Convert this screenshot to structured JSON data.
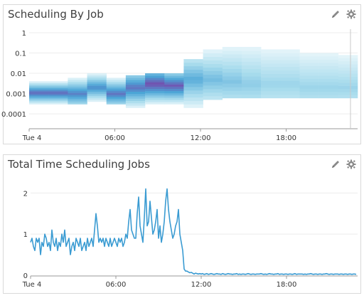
{
  "panels": [
    {
      "title": "Scheduling By Job",
      "edit_icon": "pencil-icon",
      "settings_icon": "gear-icon",
      "chart_data": {
        "type": "heatmap",
        "title": "Scheduling By Job",
        "x_tick_labels": [
          "Tue 4",
          "06:00",
          "12:00",
          "18:00"
        ],
        "y_tick_labels": [
          "1",
          "0.1",
          "0.01",
          "0.001",
          "0.0001"
        ],
        "y_scale": "log",
        "ylim": [
          2e-05,
          1.5
        ],
        "xlim_hours": [
          0,
          23
        ],
        "grid": "horizontal",
        "legend": "none",
        "colors": {
          "low": "#d9f0f7",
          "mid": "#5cb8df",
          "high": "#7a3fa8"
        },
        "columns": [
          {
            "t": 0.0,
            "low": 0.0003,
            "high": 0.004,
            "peak": 0.0011,
            "intensity": 0.85
          },
          {
            "t": 1.4,
            "low": 0.0003,
            "high": 0.004,
            "peak": 0.0011,
            "intensity": 0.85
          },
          {
            "t": 2.8,
            "low": 0.0003,
            "high": 0.006,
            "peak": 0.001,
            "intensity": 0.75
          },
          {
            "t": 4.2,
            "low": 0.0004,
            "high": 0.01,
            "peak": 0.002,
            "intensity": 0.7
          },
          {
            "t": 5.6,
            "low": 0.0003,
            "high": 0.006,
            "peak": 0.001,
            "intensity": 0.8
          },
          {
            "t": 7.0,
            "low": 0.0002,
            "high": 0.008,
            "peak": 0.002,
            "intensity": 0.8
          },
          {
            "t": 8.4,
            "low": 0.0003,
            "high": 0.01,
            "peak": 0.003,
            "intensity": 0.95
          },
          {
            "t": 9.8,
            "low": 0.0003,
            "high": 0.01,
            "peak": 0.0025,
            "intensity": 0.9
          },
          {
            "t": 11.0,
            "low": 0.0002,
            "high": 0.05,
            "peak": 0.005,
            "intensity": 0.55
          },
          {
            "t": 12.0,
            "low": 0.0005,
            "high": 0.15,
            "peak": 0.005,
            "intensity": 0.45
          },
          {
            "t": 13.3,
            "low": 0.0006,
            "high": 0.2,
            "peak": 0.004,
            "intensity": 0.4
          },
          {
            "t": 14.6,
            "low": 0.0006,
            "high": 0.2,
            "peak": 0.003,
            "intensity": 0.35
          },
          {
            "t": 15.9,
            "low": 0.0006,
            "high": 0.15,
            "peak": 0.003,
            "intensity": 0.3
          },
          {
            "t": 17.2,
            "low": 0.0006,
            "high": 0.15,
            "peak": 0.003,
            "intensity": 0.3
          },
          {
            "t": 18.5,
            "low": 0.0006,
            "high": 0.1,
            "peak": 0.002,
            "intensity": 0.3
          },
          {
            "t": 19.8,
            "low": 0.0006,
            "high": 0.1,
            "peak": 0.002,
            "intensity": 0.3
          },
          {
            "t": 21.1,
            "low": 0.0006,
            "high": 0.08,
            "peak": 0.002,
            "intensity": 0.3
          }
        ]
      }
    },
    {
      "title": "Total Time Scheduling Jobs",
      "edit_icon": "pencil-icon",
      "settings_icon": "gear-icon",
      "chart_data": {
        "type": "line",
        "title": "Total Time Scheduling Jobs",
        "x_tick_labels": [
          "Tue 4",
          "06:00",
          "12:00",
          "18:00"
        ],
        "y_tick_labels": [
          "0",
          "1",
          "2"
        ],
        "ylim": [
          0,
          2.3
        ],
        "xlim_hours": [
          0,
          23
        ],
        "grid": "horizontal",
        "legend": "none",
        "color": "#3a9bd2",
        "series": [
          {
            "t_start": 0,
            "t_step": 0.1,
            "values": [
              0.8,
              0.9,
              0.7,
              0.6,
              0.9,
              0.8,
              0.9,
              0.5,
              0.8,
              0.7,
              1.0,
              0.9,
              0.7,
              0.8,
              0.6,
              1.1,
              0.8,
              0.7,
              0.9,
              0.6,
              0.8,
              0.7,
              1.0,
              0.8,
              1.1,
              0.7,
              0.8,
              0.9,
              0.5,
              0.7,
              0.8,
              0.6,
              0.9,
              0.8,
              0.7,
              0.9,
              0.6,
              0.7,
              0.8,
              0.6,
              0.9,
              0.7,
              0.8,
              0.9,
              0.7,
              1.1,
              1.5,
              1.2,
              0.8,
              0.9,
              0.8,
              0.9,
              0.7,
              0.9,
              0.8,
              0.7,
              0.9,
              0.7,
              0.8,
              0.9,
              0.8,
              0.7,
              0.9,
              0.8,
              0.9,
              0.7,
              0.8,
              1.0,
              0.9,
              1.3,
              1.6,
              1.1,
              1.0,
              0.9,
              0.9,
              1.5,
              1.9,
              1.2,
              1.0,
              0.8,
              1.4,
              2.1,
              1.2,
              1.3,
              1.8,
              1.4,
              1.0,
              1.1,
              1.3,
              1.6,
              0.9,
              1.2,
              0.8,
              1.0,
              1.3,
              1.8,
              2.1,
              1.6,
              1.3,
              1.1,
              0.9,
              1.0,
              1.2,
              1.3,
              1.6,
              1.0,
              0.8,
              0.6,
              0.15,
              0.1,
              0.1,
              0.08,
              0.06,
              0.07,
              0.05,
              0.03,
              0.05,
              0.04,
              0.03,
              0.04,
              0.03,
              0.04,
              0.02,
              0.03,
              0.04,
              0.02,
              0.03,
              0.04,
              0.03,
              0.02,
              0.03,
              0.04,
              0.03,
              0.03,
              0.02,
              0.04,
              0.03,
              0.02,
              0.03,
              0.04,
              0.03,
              0.03,
              0.02,
              0.03,
              0.03,
              0.04,
              0.02,
              0.03,
              0.02,
              0.03,
              0.03,
              0.02,
              0.03,
              0.04,
              0.03,
              0.02,
              0.03,
              0.03,
              0.02,
              0.03,
              0.03,
              0.03,
              0.04,
              0.03,
              0.02,
              0.03,
              0.02,
              0.03,
              0.04,
              0.03,
              0.03,
              0.02,
              0.03,
              0.03,
              0.04,
              0.02,
              0.03,
              0.03,
              0.02,
              0.03,
              0.03,
              0.02,
              0.03,
              0.03,
              0.02,
              0.03,
              0.04,
              0.02,
              0.03,
              0.03,
              0.03,
              0.03,
              0.02,
              0.03,
              0.02,
              0.03,
              0.03,
              0.04,
              0.03,
              0.02,
              0.03,
              0.03,
              0.02,
              0.03,
              0.03,
              0.02,
              0.03,
              0.03,
              0.04,
              0.03,
              0.02,
              0.03,
              0.03,
              0.02,
              0.03,
              0.03,
              0.03,
              0.02,
              0.03,
              0.03,
              0.02,
              0.03,
              0.03,
              0.02,
              0.03,
              0.03,
              0.02,
              0.03,
              0.03,
              0.02
            ]
          }
        ]
      }
    }
  ]
}
